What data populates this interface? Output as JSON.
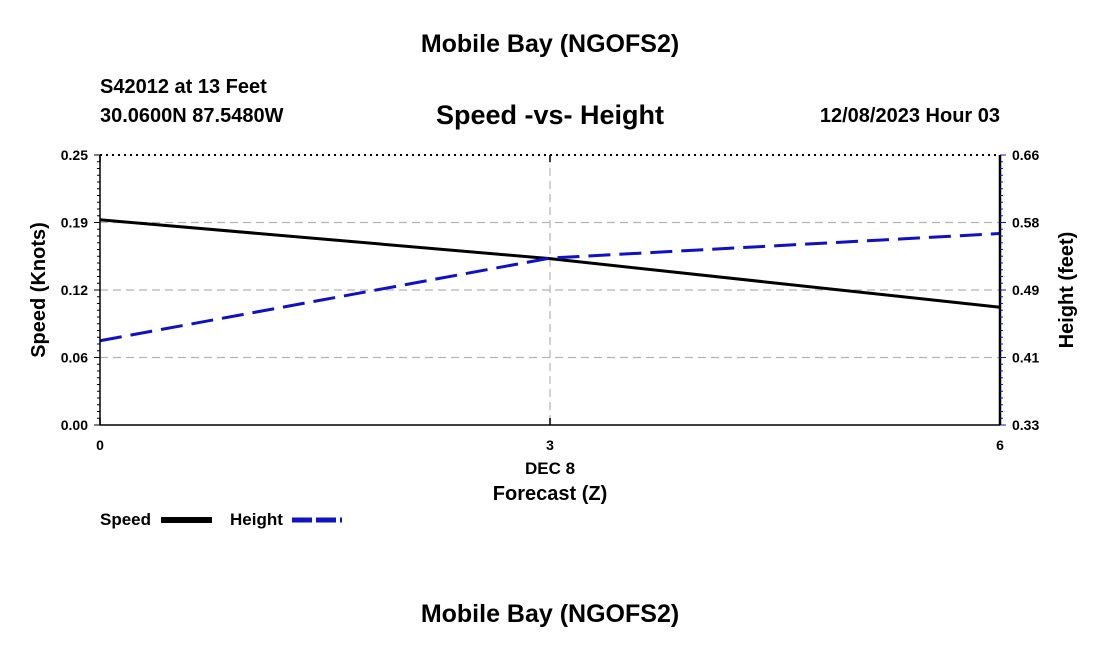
{
  "header": {
    "title_top": "Mobile Bay (NGOFS2)",
    "station": "S42012 at 13 Feet",
    "coords": "30.0600N  87.5480W",
    "subtitle": "Speed -vs- Height",
    "datetime": "12/08/2023 Hour 03",
    "title_bottom": "Mobile Bay (NGOFS2)"
  },
  "colors": {
    "speed": "#000000",
    "height": "#1010c8",
    "grid": "#b4b4b4"
  },
  "chart_data": {
    "type": "line",
    "title": "Speed -vs- Height",
    "xlabel": "Forecast (Z)",
    "x_date_label": "DEC 8",
    "ylabel": "Speed (Knots)",
    "ylabel_right": "Height (feet)",
    "xlim": [
      0,
      6
    ],
    "ylim": [
      0,
      0.25
    ],
    "ylim_right": [
      0.33,
      0.66
    ],
    "x_ticks": [
      "0",
      "3",
      "6"
    ],
    "y_ticks": [
      "0.00",
      "0.06",
      "0.12",
      "0.19",
      "0.25"
    ],
    "y_ticks_right": [
      "0.33",
      "0.41",
      "0.49",
      "0.58",
      "0.66"
    ],
    "grid": true,
    "legend_position": "bottom-left",
    "series": [
      {
        "name": "Speed",
        "axis": "left",
        "style": "solid",
        "x": [
          0,
          3,
          6
        ],
        "values": [
          0.19,
          0.154,
          0.109
        ]
      },
      {
        "name": "Height",
        "axis": "right",
        "style": "dashed",
        "x": [
          0,
          3,
          6
        ],
        "values": [
          0.433,
          0.534,
          0.564
        ]
      }
    ]
  }
}
